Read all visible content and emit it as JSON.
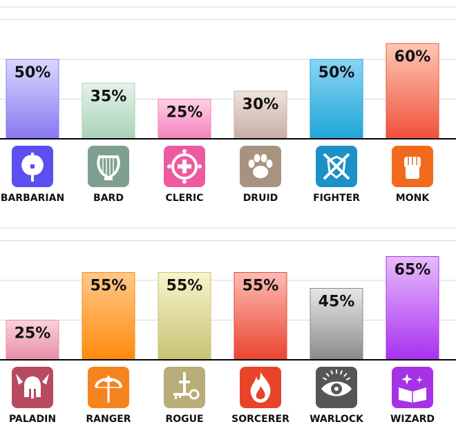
{
  "chart_data": [
    {
      "type": "bar",
      "categories": [
        "BARBARIAN",
        "BARD",
        "CLERIC",
        "DRUID",
        "FIGHTER",
        "MONK"
      ],
      "values": [
        50,
        35,
        25,
        30,
        50,
        60
      ],
      "labels": [
        "50%",
        "35%",
        "25%",
        "30%",
        "50%",
        "60%"
      ],
      "icons": [
        "double-axe-icon",
        "lyre-icon",
        "holy-symbol-icon",
        "paw-print-icon",
        "crossed-swords-shield-icon",
        "raised-fist-icon"
      ],
      "icon_colors": [
        "#5b4ff0",
        "#7fa090",
        "#ee5aa0",
        "#a89280",
        "#1e90c8",
        "#f06a1e"
      ],
      "bar_colors": [
        [
          "#d8d8ff",
          "#8878f0"
        ],
        [
          "#e6f2ea",
          "#a9d2b8"
        ],
        [
          "#ffd0e6",
          "#f282bc"
        ],
        [
          "#efe2dc",
          "#c8aea4"
        ],
        [
          "#8ad4f4",
          "#1fa6d8"
        ],
        [
          "#fdc8b4",
          "#f0503a"
        ]
      ],
      "ylim": [
        0,
        100
      ],
      "grid": true
    },
    {
      "type": "bar",
      "categories": [
        "PALADIN",
        "RANGER",
        "ROGUE",
        "SORCERER",
        "WARLOCK",
        "WIZARD"
      ],
      "values": [
        25,
        55,
        55,
        55,
        45,
        65
      ],
      "labels": [
        "25%",
        "55%",
        "55%",
        "55%",
        "45%",
        "65%"
      ],
      "icons": [
        "winged-helmet-icon",
        "bow-and-arrow-icon",
        "dagger-and-key-icon",
        "flame-icon",
        "eye-icon",
        "spellbook-icon"
      ],
      "icon_colors": [
        "#b84a60",
        "#f5841f",
        "#b8ad78",
        "#e8442a",
        "#555555",
        "#a632e6"
      ],
      "bar_colors": [
        [
          "#fbd2dc",
          "#e68ea6"
        ],
        [
          "#ffc88a",
          "#ff8a0c"
        ],
        [
          "#f8f4cc",
          "#c8c274"
        ],
        [
          "#fcbcb4",
          "#ea4430"
        ],
        [
          "#e6e6e6",
          "#8a8a8a"
        ],
        [
          "#e8bcfc",
          "#a830f0"
        ]
      ],
      "ylim": [
        0,
        100
      ],
      "grid": true
    }
  ]
}
